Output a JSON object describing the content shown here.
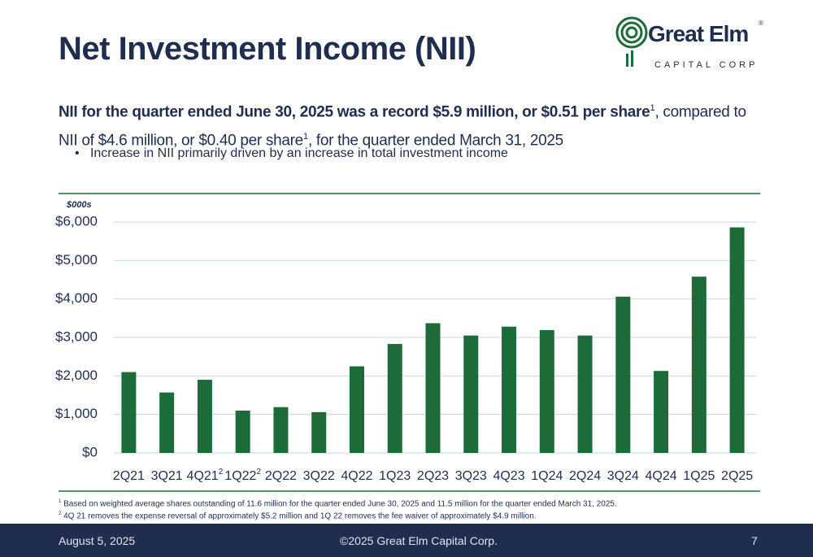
{
  "header": {
    "title": "Net Investment Income (NII)",
    "logo": {
      "name": "Great Elm",
      "registered": "®",
      "tagline": "CAPITAL CORP"
    },
    "summary": {
      "lead": "NII for the quarter ended June 30, 2025 was a record $5.9 million, or $0.51 per share",
      "note_1": "1",
      "middle": ", compared to NII of $4.6 million, or $0.40 per share",
      "note_2": "1",
      "tail": ", for the quarter ended March 31, 2025"
    },
    "bullet": "Increase in NII primarily driven by an increase in total investment income"
  },
  "chart_data": {
    "type": "bar",
    "unit_label": "$000s",
    "categories": [
      "2Q21",
      "3Q21",
      "4Q21",
      "1Q22",
      "2Q22",
      "3Q22",
      "4Q22",
      "1Q23",
      "2Q23",
      "3Q23",
      "4Q23",
      "1Q24",
      "2Q24",
      "3Q24",
      "4Q24",
      "1Q25",
      "2Q25"
    ],
    "category_notes": [
      null,
      null,
      "2",
      "2",
      null,
      null,
      null,
      null,
      null,
      null,
      null,
      null,
      null,
      null,
      null,
      null,
      null
    ],
    "values": [
      2100,
      1570,
      1900,
      1100,
      1190,
      1060,
      2250,
      2830,
      3370,
      3050,
      3280,
      3190,
      3050,
      4060,
      2130,
      4580,
      5860
    ],
    "color": "#1e6b3a",
    "ylim": [
      0,
      6000
    ],
    "yticks": [
      {
        "value": 0,
        "label": "$0"
      },
      {
        "value": 1000,
        "label": "$1,000"
      },
      {
        "value": 2000,
        "label": "$2,000"
      },
      {
        "value": 3000,
        "label": "$3,000"
      },
      {
        "value": 4000,
        "label": "$4,000"
      },
      {
        "value": 5000,
        "label": "$5,000"
      },
      {
        "value": 6000,
        "label": "$6,000"
      }
    ],
    "grid": true
  },
  "footnotes": [
    {
      "mark": "1",
      "text": "Based on weighted average shares outstanding of 11.6 million for the quarter ended June 30, 2025 and 11.5 million for the quarter ended March 31, 2025."
    },
    {
      "mark": "2",
      "text": "4Q 21 removes the expense reversal of approximately $5.2 million and 1Q 22 removes the fee waiver of approximately $4.9 million."
    }
  ],
  "footer": {
    "date": "August 5, 2025",
    "copyright": "©2025 Great Elm Capital Corp.",
    "page": "7"
  }
}
